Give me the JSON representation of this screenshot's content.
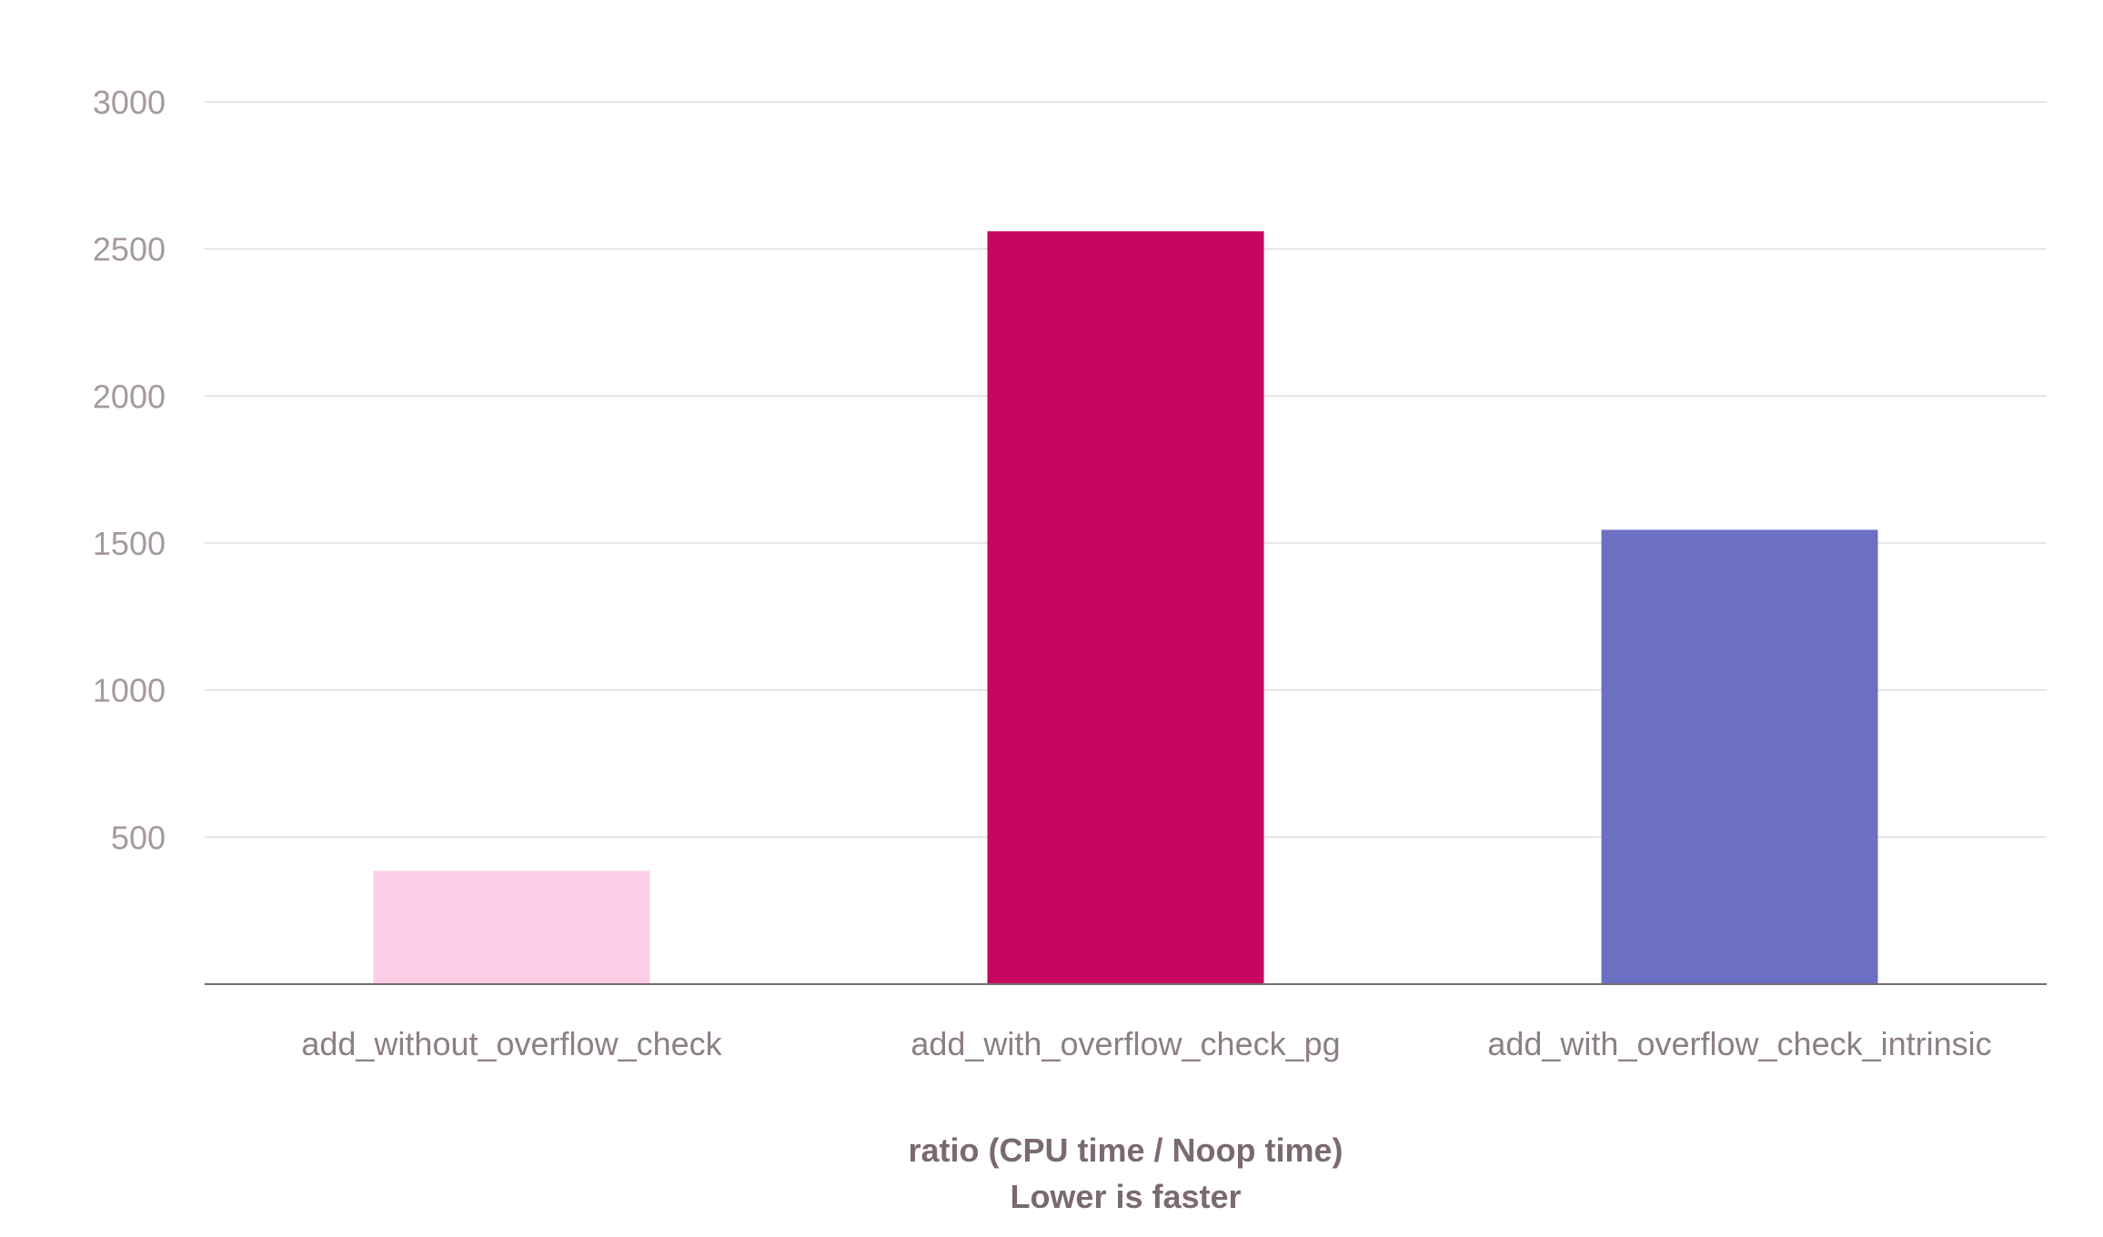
{
  "chart_data": {
    "type": "bar",
    "title": "",
    "xlabel": "ratio (CPU time / Noop time)",
    "xlabel_sub": "Lower is faster",
    "ylabel": "",
    "categories": [
      "add_without_overflow_check",
      "add_with_overflow_check_pg",
      "add_with_overflow_check_intrinsic"
    ],
    "values": [
      385,
      2560,
      1545
    ],
    "colors": [
      "#fccde5",
      "#c5075f",
      "#6c70c4"
    ],
    "ylim": [
      0,
      3000
    ],
    "yticks": [
      500,
      1000,
      1500,
      2000,
      2500,
      3000
    ],
    "grid": true,
    "legend": "none"
  }
}
